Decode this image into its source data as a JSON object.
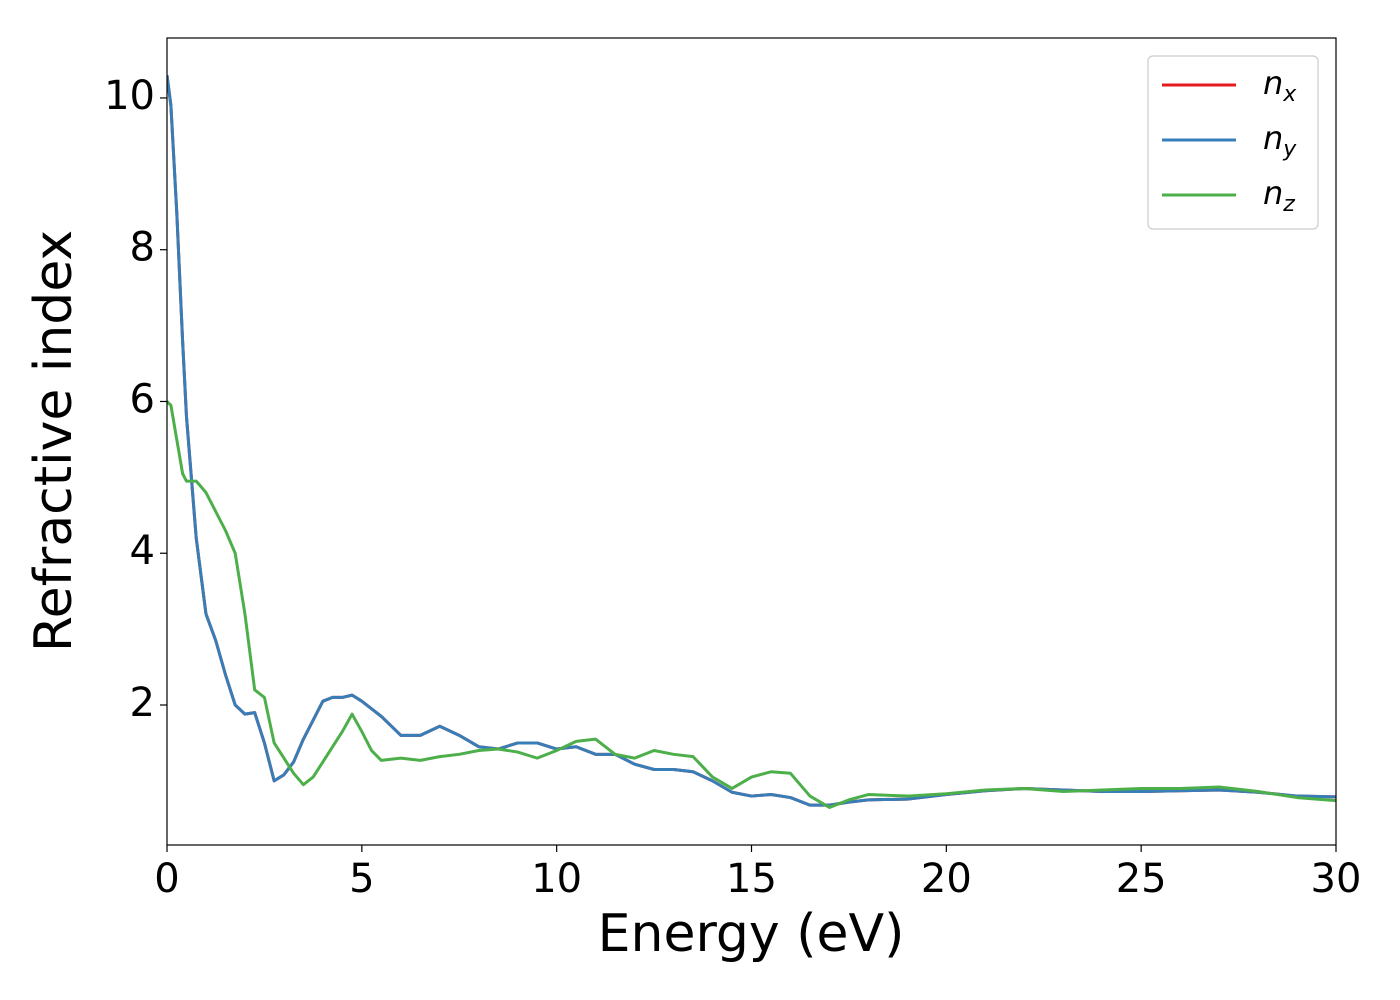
{
  "chart_data": {
    "type": "line",
    "xlabel": "Energy (eV)",
    "ylabel": "Refractive index",
    "x": [
      0,
      0.1,
      0.25,
      0.4,
      0.5,
      0.75,
      1,
      1.25,
      1.5,
      1.75,
      2,
      2.25,
      2.5,
      2.75,
      3,
      3.25,
      3.5,
      3.75,
      4,
      4.25,
      4.5,
      4.75,
      5,
      5.25,
      5.5,
      6,
      6.5,
      7,
      7.5,
      8,
      8.5,
      9,
      9.5,
      10,
      10.5,
      11,
      11.5,
      12,
      12.5,
      13,
      13.5,
      14,
      14.5,
      15,
      15.5,
      16,
      16.5,
      17,
      17.5,
      18,
      19,
      20,
      21,
      22,
      23,
      24,
      25,
      26,
      27,
      28,
      29,
      30
    ],
    "series": [
      {
        "name": "nx",
        "color": "#e41a1c",
        "values": [
          10.3,
          9.9,
          8.5,
          6.8,
          5.8,
          4.2,
          3.2,
          2.85,
          2.4,
          2.0,
          1.88,
          1.9,
          1.5,
          1.0,
          1.08,
          1.25,
          1.55,
          1.8,
          2.05,
          2.1,
          2.1,
          2.13,
          2.05,
          1.95,
          1.85,
          1.6,
          1.6,
          1.72,
          1.6,
          1.45,
          1.42,
          1.5,
          1.5,
          1.42,
          1.45,
          1.35,
          1.35,
          1.22,
          1.15,
          1.15,
          1.12,
          1.0,
          0.85,
          0.8,
          0.82,
          0.78,
          0.68,
          0.68,
          0.72,
          0.75,
          0.76,
          0.82,
          0.87,
          0.9,
          0.88,
          0.86,
          0.86,
          0.87,
          0.88,
          0.85,
          0.8,
          0.79
        ]
      },
      {
        "name": "ny",
        "color": "#377eb8",
        "values": [
          10.3,
          9.9,
          8.5,
          6.8,
          5.8,
          4.2,
          3.2,
          2.85,
          2.4,
          2.0,
          1.88,
          1.9,
          1.5,
          1.0,
          1.08,
          1.25,
          1.55,
          1.8,
          2.05,
          2.1,
          2.1,
          2.13,
          2.05,
          1.95,
          1.85,
          1.6,
          1.6,
          1.72,
          1.6,
          1.45,
          1.42,
          1.5,
          1.5,
          1.42,
          1.45,
          1.35,
          1.35,
          1.22,
          1.15,
          1.15,
          1.12,
          1.0,
          0.85,
          0.8,
          0.82,
          0.78,
          0.68,
          0.68,
          0.72,
          0.75,
          0.76,
          0.82,
          0.87,
          0.9,
          0.88,
          0.86,
          0.86,
          0.87,
          0.88,
          0.85,
          0.8,
          0.79
        ]
      },
      {
        "name": "nz",
        "color": "#4daf4a",
        "values": [
          6.0,
          5.95,
          5.5,
          5.05,
          4.95,
          4.95,
          4.8,
          4.55,
          4.3,
          4.0,
          3.2,
          2.2,
          2.1,
          1.5,
          1.3,
          1.1,
          0.95,
          1.05,
          1.25,
          1.45,
          1.65,
          1.88,
          1.65,
          1.4,
          1.27,
          1.3,
          1.27,
          1.32,
          1.35,
          1.4,
          1.42,
          1.38,
          1.3,
          1.4,
          1.52,
          1.55,
          1.35,
          1.3,
          1.4,
          1.35,
          1.32,
          1.05,
          0.9,
          1.05,
          1.12,
          1.1,
          0.8,
          0.65,
          0.75,
          0.82,
          0.8,
          0.83,
          0.88,
          0.9,
          0.86,
          0.88,
          0.9,
          0.9,
          0.92,
          0.86,
          0.78,
          0.74
        ]
      }
    ],
    "xlim": [
      0,
      30
    ],
    "xticks": [
      0,
      5,
      10,
      15,
      20,
      25,
      30
    ],
    "ylim": [
      0.155,
      10.79
    ],
    "yticks": [
      2,
      4,
      6,
      8,
      10
    ],
    "legend": "upper right",
    "grid": false
  }
}
